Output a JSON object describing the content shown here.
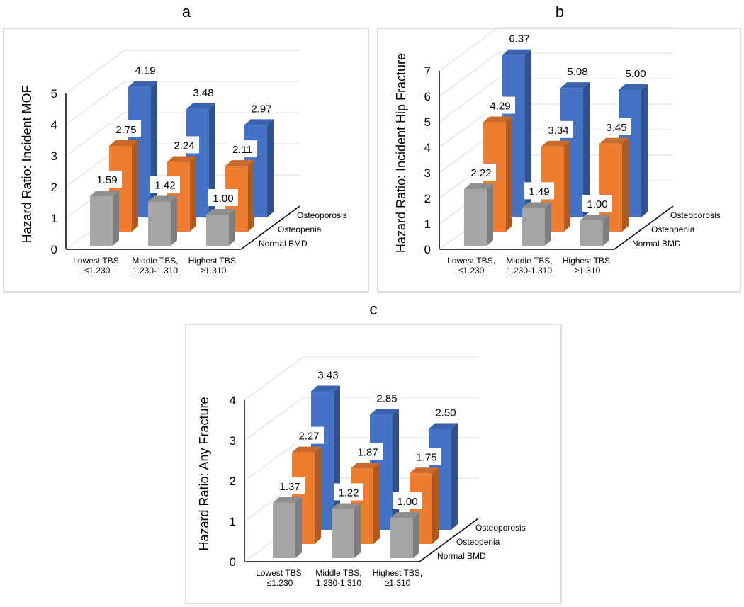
{
  "colors": {
    "Normal BMD": {
      "front": "#A5A5A5",
      "side": "#7E7E7E",
      "top": "#8E8E8E"
    },
    "Osteopenia": {
      "front": "#ED7D31",
      "side": "#B25A1E",
      "top": "#C9692A"
    },
    "Osteoporosis": {
      "front": "#4472C4",
      "side": "#2F528F",
      "top": "#3A62AE"
    }
  },
  "chart_data": [
    {
      "type": "bar",
      "panel_label": "a",
      "ylabel": "Hazard Ratio:  Incident MOF",
      "ylim": [
        0,
        5
      ],
      "yticks": [
        0,
        1,
        2,
        3,
        4,
        5
      ],
      "categories": [
        [
          "Lowest TBS,",
          "≤1.230"
        ],
        [
          "Middle TBS,",
          "1.230-1.310"
        ],
        [
          "Highest TBS,",
          "≥1.310"
        ]
      ],
      "series": [
        {
          "name": "Normal BMD",
          "values": [
            1.59,
            1.42,
            1.0
          ],
          "labels": [
            "1.59",
            "1.42",
            "1.00"
          ]
        },
        {
          "name": "Osteopenia",
          "values": [
            2.75,
            2.24,
            2.11
          ],
          "labels": [
            "2.75",
            "2.24",
            "2.11"
          ]
        },
        {
          "name": "Osteoporosis",
          "values": [
            4.19,
            3.48,
            2.97
          ],
          "labels": [
            "4.19",
            "3.48",
            "2.97"
          ]
        }
      ]
    },
    {
      "type": "bar",
      "panel_label": "b",
      "ylabel": "Hazard Ratio: Incident Hip Fracture",
      "ylim": [
        0,
        7
      ],
      "yticks": [
        0,
        1,
        2,
        3,
        4,
        5,
        6,
        7
      ],
      "categories": [
        [
          "Lowest TBS,",
          "≤1.230"
        ],
        [
          "Middle TBS,",
          "1.230-1.310"
        ],
        [
          "Highest TBS,",
          "≥1.310"
        ]
      ],
      "series": [
        {
          "name": "Normal BMD",
          "values": [
            2.22,
            1.49,
            1.0
          ],
          "labels": [
            "2.22",
            "1.49",
            "1.00"
          ]
        },
        {
          "name": "Osteopenia",
          "values": [
            4.29,
            3.34,
            3.45
          ],
          "labels": [
            "4.29",
            "3.34",
            "3.45"
          ]
        },
        {
          "name": "Osteoporosis",
          "values": [
            6.37,
            5.08,
            5.0
          ],
          "labels": [
            "6.37",
            "5.08",
            "5.00"
          ]
        }
      ]
    },
    {
      "type": "bar",
      "panel_label": "c",
      "ylabel": "Hazard Ratio: Any Fracture",
      "ylim": [
        0,
        4
      ],
      "yticks": [
        0,
        1,
        2,
        3,
        4
      ],
      "categories": [
        [
          "Lowest TBS,",
          "≤1.230"
        ],
        [
          "Middle TBS,",
          "1.230-1.310"
        ],
        [
          "Highest TBS,",
          "≥1.310"
        ]
      ],
      "series": [
        {
          "name": "Normal BMD",
          "values": [
            1.37,
            1.22,
            1.0
          ],
          "labels": [
            "1.37",
            "1.22",
            "1.00"
          ]
        },
        {
          "name": "Osteopenia",
          "values": [
            2.27,
            1.87,
            1.75
          ],
          "labels": [
            "2.27",
            "1.87",
            "1.75"
          ]
        },
        {
          "name": "Osteoporosis",
          "values": [
            3.43,
            2.85,
            2.5
          ],
          "labels": [
            "3.43",
            "2.85",
            "2.50"
          ]
        }
      ]
    }
  ]
}
